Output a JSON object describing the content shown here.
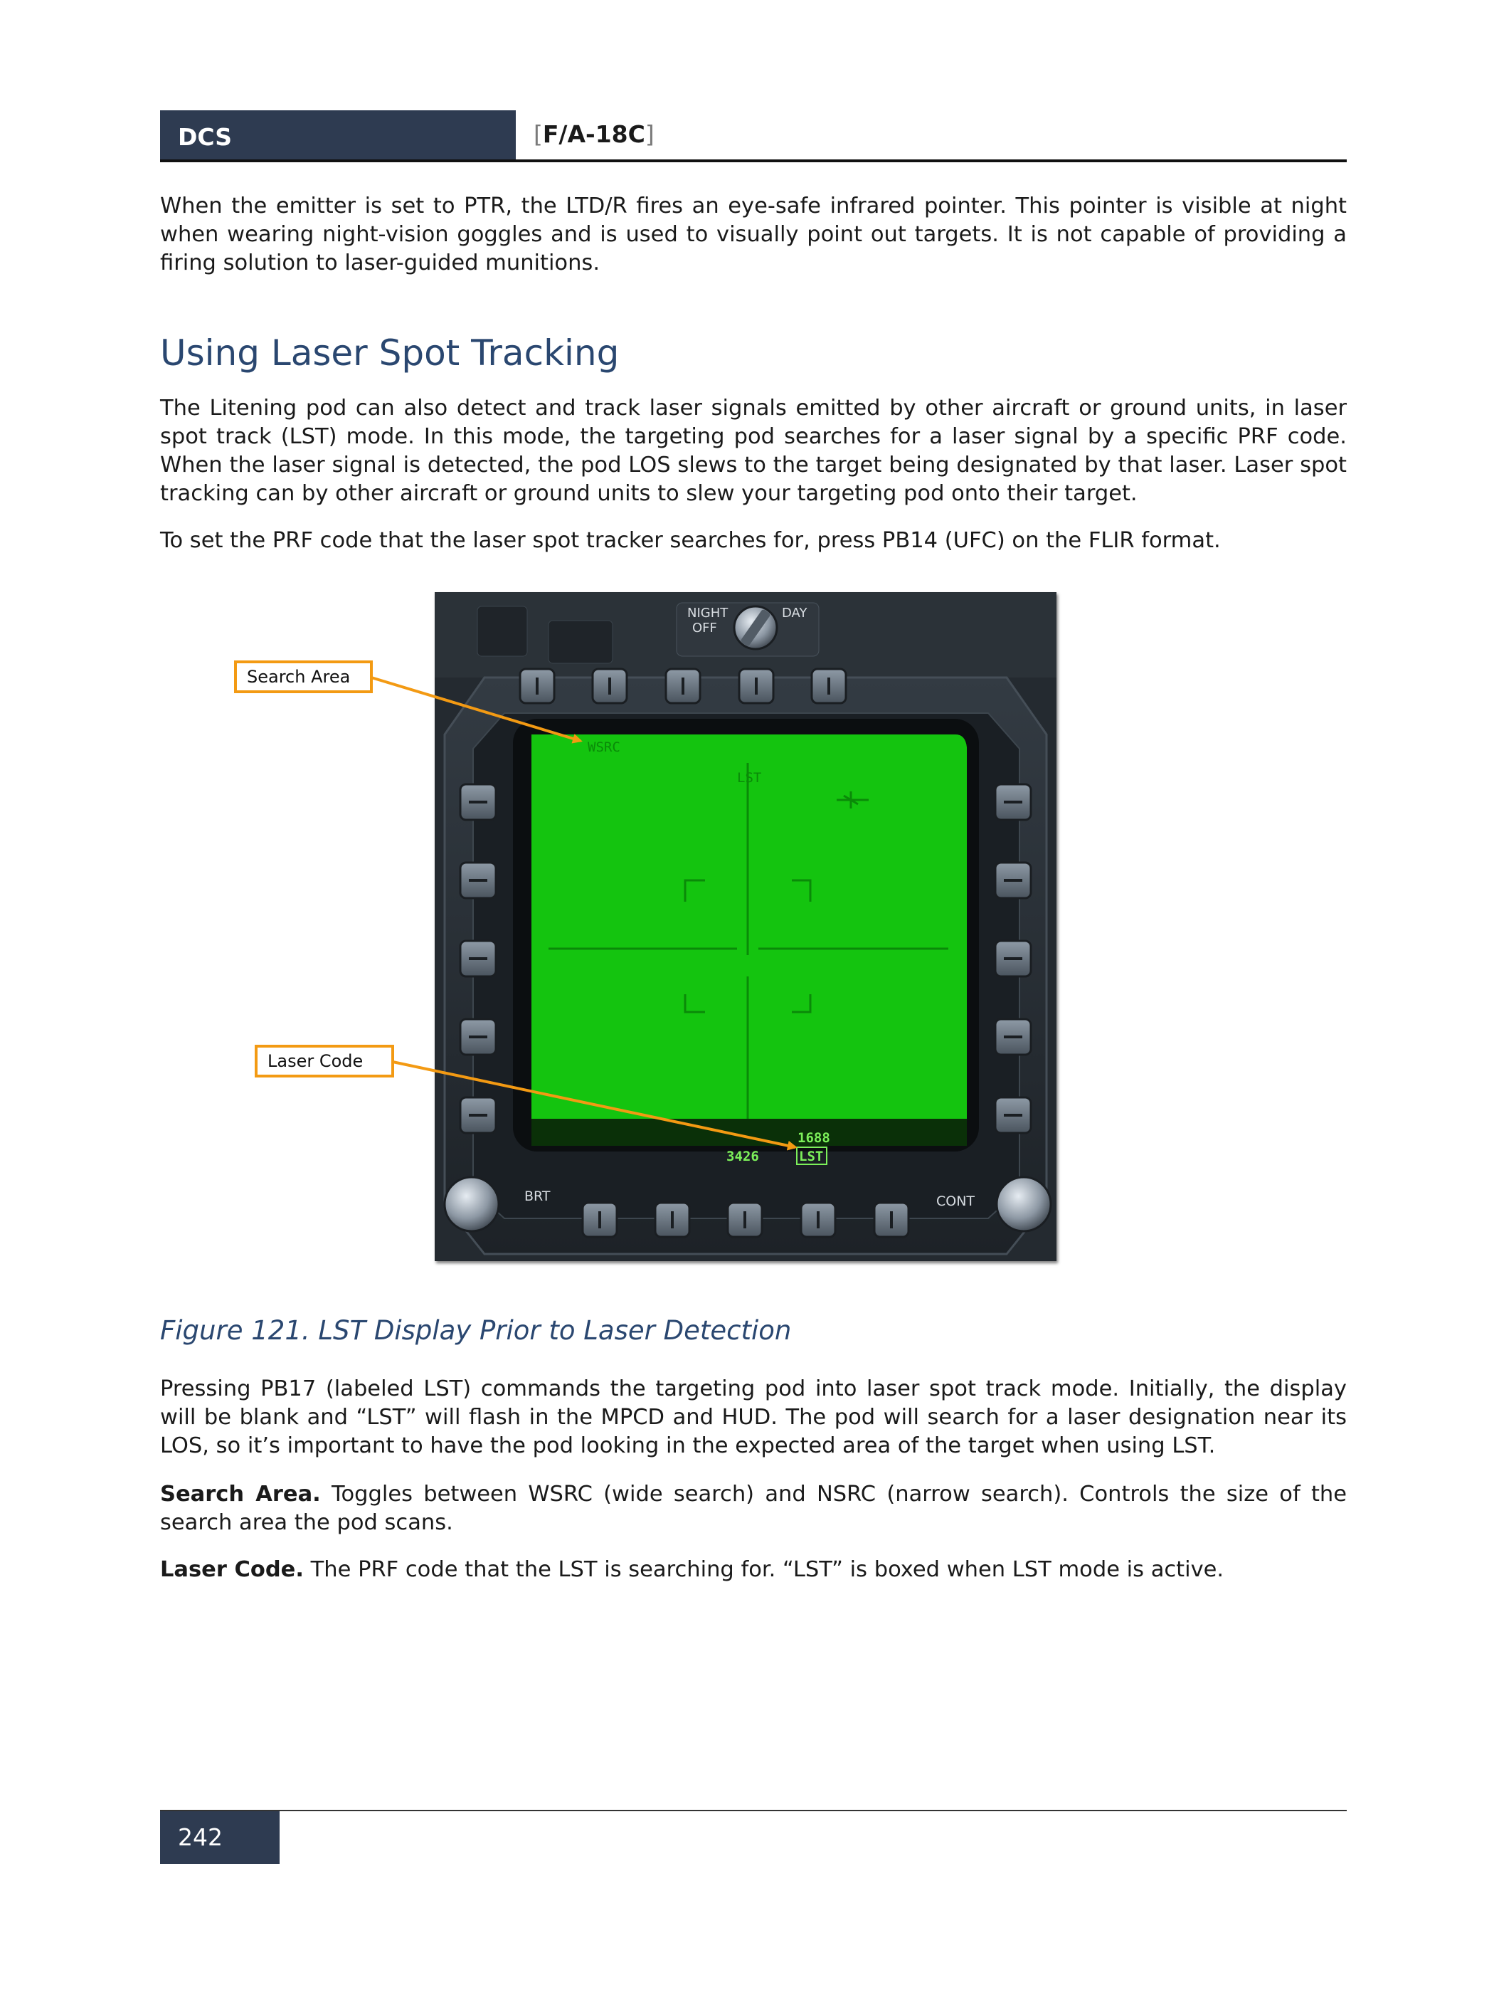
{
  "header": {
    "left": "DCS",
    "right_prefix": "[",
    "right_title": "F/A-18C",
    "right_suffix": "]"
  },
  "paragraphs": {
    "p1": "When the emitter is set to PTR, the LTD/R fires an eye-safe infrared pointer. This pointer is visible at night when wearing night-vision goggles and is used to visually point out targets. It is not capable of providing a firing solution to laser-guided munitions.",
    "p2": "The Litening pod can also detect and track laser signals emitted by other aircraft or ground units, in laser spot track (LST) mode. In this mode, the targeting pod searches for a laser signal by a specific PRF code. When the laser signal is detected, the pod LOS slews to the target being designated by that laser. Laser spot tracking can by other aircraft or ground units to slew your targeting pod onto their target.",
    "p3": "To set the PRF code that the laser spot tracker searches for, press PB14 (UFC) on the FLIR format.",
    "p4": "Pressing PB17 (labeled LST) commands the targeting pod into laser spot track mode. Initially, the display will be blank and “LST” will flash in the MPCD and HUD. The pod will search for a laser designation near its LOS, so it’s important to have the pod looking in the expected area of the target when using LST.",
    "p5_term": "Search Area.",
    "p5_text": " Toggles between WSRC (wide search) and NSRC (narrow search). Controls the size of the search area the pod scans.",
    "p6_term": "Laser Code.",
    "p6_text": " The PRF code that the LST is searching for. “LST” is boxed when LST mode is active."
  },
  "section_title": "Using Laser Spot Tracking",
  "figure": {
    "caption": "Figure 121. LST Display Prior to Laser Detection",
    "callouts": {
      "search_area": "Search Area",
      "laser_code": "Laser Code"
    },
    "display": {
      "wsrc": "WSRC",
      "lst_top": "LST",
      "code_upper": "1688",
      "code_boxed": "LST",
      "code_lower": "3426",
      "screen_color": "#14c40f",
      "symbol_color": "#0a8a08",
      "readout_color": "#7cf05a"
    },
    "panel": {
      "night": "NIGHT",
      "off": "OFF",
      "day": "DAY",
      "brt": "BRT",
      "cont": "CONT"
    },
    "accent_color": "#f39a13"
  },
  "footer": {
    "page_number": "242"
  }
}
